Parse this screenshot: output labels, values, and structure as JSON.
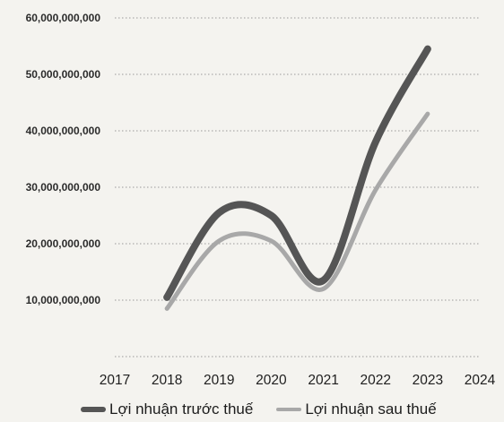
{
  "chart_data": {
    "type": "line",
    "x": [
      "2018",
      "2019",
      "2020",
      "2021",
      "2022",
      "2023"
    ],
    "x_ticks": [
      "2017",
      "2018",
      "2019",
      "2020",
      "2021",
      "2022",
      "2023",
      "2024"
    ],
    "ylim": [
      0,
      60000000000
    ],
    "y_ticks": [
      "10,000,000,000",
      "20,000,000,000",
      "30,000,000,000",
      "40,000,000,000",
      "50,000,000,000",
      "60,000,000,000"
    ],
    "grid": true,
    "legend": "bottom",
    "series": [
      {
        "name": "Lợi nhuận trước thuế",
        "values": [
          10500000000,
          25500000000,
          25000000000,
          13500000000,
          38000000000,
          54500000000
        ],
        "color": "#555555"
      },
      {
        "name": "Lợi nhuận sau thuế",
        "values": [
          8500000000,
          20500000000,
          20500000000,
          12000000000,
          29500000000,
          43000000000
        ],
        "color": "#a8a8a8"
      }
    ]
  }
}
